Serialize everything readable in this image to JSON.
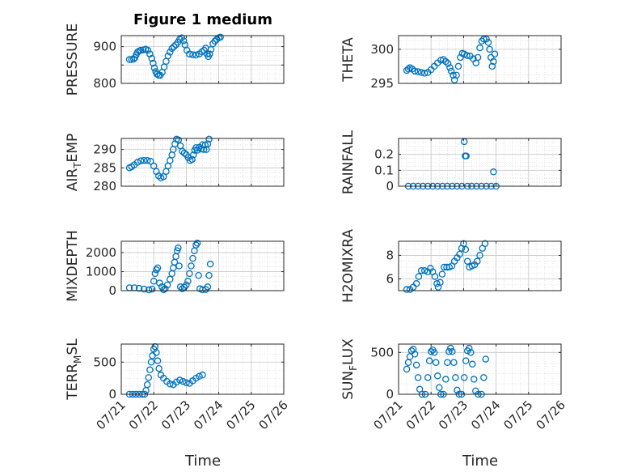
{
  "figure": {
    "title": "Figure 1 medium",
    "marker_color": "#0072BD",
    "x_label": "Time",
    "x_ticks": [
      "07/21",
      "07/22",
      "07/23",
      "07/24",
      "07/25",
      "07/26"
    ],
    "x_range_days": [
      0,
      5
    ]
  },
  "chart_data": [
    {
      "type": "scatter",
      "ylabel": "PRESSURE",
      "ylim": [
        800,
        930
      ],
      "yticks": [
        800,
        850,
        900
      ],
      "ytick_labels": [
        "800",
        "",
        "900"
      ],
      "points": [
        [
          0.25,
          865
        ],
        [
          0.32,
          865
        ],
        [
          0.38,
          866
        ],
        [
          0.42,
          870
        ],
        [
          0.46,
          878
        ],
        [
          0.5,
          885
        ],
        [
          0.55,
          888
        ],
        [
          0.6,
          890
        ],
        [
          0.68,
          891
        ],
        [
          0.75,
          893
        ],
        [
          0.82,
          890
        ],
        [
          0.88,
          880
        ],
        [
          0.94,
          868
        ],
        [
          0.98,
          855
        ],
        [
          1.02,
          842
        ],
        [
          1.06,
          832
        ],
        [
          1.1,
          825
        ],
        [
          1.15,
          822
        ],
        [
          1.2,
          822
        ],
        [
          1.26,
          830
        ],
        [
          1.32,
          845
        ],
        [
          1.38,
          860
        ],
        [
          1.44,
          875
        ],
        [
          1.5,
          885
        ],
        [
          1.56,
          895
        ],
        [
          1.62,
          900
        ],
        [
          1.68,
          905
        ],
        [
          1.74,
          912
        ],
        [
          1.8,
          920
        ],
        [
          1.86,
          924
        ],
        [
          1.92,
          916
        ],
        [
          1.96,
          905
        ],
        [
          2.02,
          890
        ],
        [
          2.1,
          880
        ],
        [
          2.2,
          878
        ],
        [
          2.3,
          877
        ],
        [
          2.4,
          880
        ],
        [
          2.48,
          886
        ],
        [
          2.55,
          890
        ],
        [
          2.6,
          896
        ],
        [
          2.64,
          880
        ],
        [
          2.68,
          873
        ],
        [
          2.72,
          880
        ],
        [
          2.76,
          892
        ],
        [
          2.82,
          908
        ],
        [
          2.88,
          915
        ],
        [
          2.94,
          920
        ],
        [
          3.0,
          924
        ],
        [
          3.05,
          926
        ]
      ]
    },
    {
      "type": "scatter",
      "ylabel": "THETA",
      "ylim": [
        295,
        302
      ],
      "yticks": [
        295,
        300
      ],
      "ytick_labels": [
        "295",
        "300"
      ],
      "points": [
        [
          0.25,
          296.9
        ],
        [
          0.3,
          297.1
        ],
        [
          0.35,
          297.3
        ],
        [
          0.42,
          297.1
        ],
        [
          0.5,
          296.8
        ],
        [
          0.6,
          296.7
        ],
        [
          0.7,
          296.6
        ],
        [
          0.8,
          296.5
        ],
        [
          0.9,
          296.6
        ],
        [
          1.0,
          297.0
        ],
        [
          1.1,
          297.5
        ],
        [
          1.2,
          298.0
        ],
        [
          1.3,
          298.4
        ],
        [
          1.38,
          298.5
        ],
        [
          1.45,
          298.2
        ],
        [
          1.52,
          297.9
        ],
        [
          1.58,
          297.3
        ],
        [
          1.62,
          296.8
        ],
        [
          1.68,
          296.2
        ],
        [
          1.72,
          295.5
        ],
        [
          1.78,
          296.2
        ],
        [
          1.84,
          297.5
        ],
        [
          1.9,
          298.8
        ],
        [
          1.96,
          299.4
        ],
        [
          2.02,
          299.3
        ],
        [
          2.1,
          299.1
        ],
        [
          2.2,
          299.0
        ],
        [
          2.3,
          298.6
        ],
        [
          2.38,
          298.0
        ],
        [
          2.44,
          298.8
        ],
        [
          2.5,
          300.2
        ],
        [
          2.56,
          301.2
        ],
        [
          2.62,
          301.5
        ],
        [
          2.7,
          301.5
        ],
        [
          2.76,
          301.0
        ],
        [
          2.8,
          300.0
        ],
        [
          2.84,
          298.8
        ],
        [
          2.88,
          297.5
        ],
        [
          2.92,
          298.2
        ],
        [
          2.96,
          299.3
        ]
      ]
    },
    {
      "type": "scatter",
      "ylabel": "AIR_TEMP",
      "ylim": [
        280,
        293
      ],
      "yticks": [
        280,
        285,
        290
      ],
      "ytick_labels": [
        "280",
        "285",
        "290"
      ],
      "points": [
        [
          0.25,
          285
        ],
        [
          0.32,
          285.3
        ],
        [
          0.4,
          285.8
        ],
        [
          0.5,
          286.5
        ],
        [
          0.6,
          286.9
        ],
        [
          0.7,
          287
        ],
        [
          0.8,
          287
        ],
        [
          0.9,
          286.8
        ],
        [
          1.0,
          285.5
        ],
        [
          1.08,
          284
        ],
        [
          1.15,
          282.8
        ],
        [
          1.22,
          282.3
        ],
        [
          1.3,
          282.6
        ],
        [
          1.38,
          284
        ],
        [
          1.44,
          285.5
        ],
        [
          1.5,
          287
        ],
        [
          1.56,
          288.5
        ],
        [
          1.6,
          290
        ],
        [
          1.65,
          291.5
        ],
        [
          1.7,
          292.8
        ],
        [
          1.76,
          292.6
        ],
        [
          1.82,
          291
        ],
        [
          1.88,
          289.5
        ],
        [
          1.94,
          289
        ],
        [
          2.0,
          288.6
        ],
        [
          2.06,
          287.8
        ],
        [
          2.12,
          287
        ],
        [
          2.18,
          287.3
        ],
        [
          2.22,
          288.5
        ],
        [
          2.26,
          289.8
        ],
        [
          2.3,
          290.5
        ],
        [
          2.34,
          289.8
        ],
        [
          2.4,
          290.6
        ],
        [
          2.46,
          290.1
        ],
        [
          2.5,
          291.3
        ],
        [
          2.54,
          290.0
        ],
        [
          2.58,
          291.2
        ],
        [
          2.62,
          290.0
        ],
        [
          2.66,
          291.5
        ],
        [
          2.7,
          292.8
        ]
      ]
    },
    {
      "type": "scatter",
      "ylabel": "RAINFALL",
      "ylim": [
        0,
        0.3
      ],
      "yticks": [
        0,
        0.1,
        0.2
      ],
      "ytick_labels": [
        "0",
        "0.1",
        "0.2"
      ],
      "points": [
        [
          0.3,
          0
        ],
        [
          0.45,
          0
        ],
        [
          0.6,
          0
        ],
        [
          0.75,
          0
        ],
        [
          0.9,
          0
        ],
        [
          1.05,
          0
        ],
        [
          1.2,
          0
        ],
        [
          1.35,
          0
        ],
        [
          1.5,
          0
        ],
        [
          1.65,
          0
        ],
        [
          1.8,
          0
        ],
        [
          1.95,
          0
        ],
        [
          2.02,
          0.28
        ],
        [
          2.05,
          0.19
        ],
        [
          2.08,
          0.19
        ],
        [
          2.12,
          0
        ],
        [
          2.25,
          0
        ],
        [
          2.4,
          0
        ],
        [
          2.55,
          0
        ],
        [
          2.7,
          0
        ],
        [
          2.85,
          0
        ],
        [
          3.0,
          0
        ],
        [
          2.92,
          0.09
        ]
      ]
    },
    {
      "type": "scatter",
      "ylabel": "MIXDEPTH",
      "ylim": [
        0,
        2600
      ],
      "yticks": [
        0,
        1000,
        2000
      ],
      "ytick_labels": [
        "0",
        "1000",
        "2000"
      ],
      "points": [
        [
          0.25,
          150
        ],
        [
          0.4,
          150
        ],
        [
          0.55,
          120
        ],
        [
          0.7,
          80
        ],
        [
          0.85,
          40
        ],
        [
          0.95,
          80
        ],
        [
          1.0,
          500
        ],
        [
          1.04,
          900
        ],
        [
          1.08,
          1100
        ],
        [
          1.12,
          1200
        ],
        [
          1.18,
          400
        ],
        [
          1.25,
          200
        ],
        [
          1.3,
          50
        ],
        [
          1.35,
          100
        ],
        [
          1.42,
          300
        ],
        [
          1.5,
          600
        ],
        [
          1.56,
          900
        ],
        [
          1.6,
          1200
        ],
        [
          1.64,
          1500
        ],
        [
          1.68,
          1800
        ],
        [
          1.72,
          2100
        ],
        [
          1.75,
          2250
        ],
        [
          1.78,
          1300
        ],
        [
          1.82,
          200
        ],
        [
          1.88,
          100
        ],
        [
          1.94,
          180
        ],
        [
          2.0,
          300
        ],
        [
          2.05,
          500
        ],
        [
          2.1,
          900
        ],
        [
          2.15,
          1300
        ],
        [
          2.2,
          1700
        ],
        [
          2.25,
          2100
        ],
        [
          2.3,
          2400
        ],
        [
          2.34,
          2500
        ],
        [
          2.38,
          800
        ],
        [
          2.42,
          100
        ],
        [
          2.5,
          50
        ],
        [
          2.6,
          60
        ],
        [
          2.66,
          200
        ],
        [
          2.7,
          800
        ],
        [
          2.74,
          1400
        ]
      ]
    },
    {
      "type": "scatter",
      "ylabel": "H2OMIXRA",
      "ylim": [
        5,
        9.2
      ],
      "yticks": [
        6,
        8
      ],
      "ytick_labels": [
        "6",
        "8"
      ],
      "points": [
        [
          0.25,
          5.1
        ],
        [
          0.35,
          5.1
        ],
        [
          0.45,
          5.3
        ],
        [
          0.55,
          5.6
        ],
        [
          0.62,
          6.2
        ],
        [
          0.7,
          6.7
        ],
        [
          0.8,
          6.7
        ],
        [
          0.9,
          6.6
        ],
        [
          0.98,
          6.9
        ],
        [
          1.05,
          6.6
        ],
        [
          1.12,
          6.2
        ],
        [
          1.18,
          5.6
        ],
        [
          1.22,
          5.3
        ],
        [
          1.28,
          5.7
        ],
        [
          1.34,
          6.4
        ],
        [
          1.4,
          7.0
        ],
        [
          1.48,
          7.0
        ],
        [
          1.56,
          7.0
        ],
        [
          1.64,
          7.1
        ],
        [
          1.72,
          7.5
        ],
        [
          1.8,
          7.8
        ],
        [
          1.88,
          8.1
        ],
        [
          1.94,
          8.6
        ],
        [
          2.0,
          9.0
        ],
        [
          2.06,
          8.5
        ],
        [
          2.12,
          7.5
        ],
        [
          2.18,
          7.0
        ],
        [
          2.26,
          7.1
        ],
        [
          2.34,
          7.2
        ],
        [
          2.42,
          7.5
        ],
        [
          2.5,
          8.0
        ],
        [
          2.58,
          8.6
        ],
        [
          2.66,
          9.0
        ]
      ]
    },
    {
      "type": "scatter",
      "ylabel": "TERR_MSL",
      "ylim": [
        0,
        780
      ],
      "yticks": [
        0,
        500
      ],
      "ytick_labels": [
        "0",
        "500"
      ],
      "points": [
        [
          0.25,
          0
        ],
        [
          0.35,
          0
        ],
        [
          0.45,
          0
        ],
        [
          0.55,
          0
        ],
        [
          0.65,
          0
        ],
        [
          0.72,
          0
        ],
        [
          0.76,
          60
        ],
        [
          0.8,
          150
        ],
        [
          0.84,
          260
        ],
        [
          0.88,
          380
        ],
        [
          0.92,
          500
        ],
        [
          0.96,
          600
        ],
        [
          1.0,
          700
        ],
        [
          1.04,
          740
        ],
        [
          1.08,
          650
        ],
        [
          1.12,
          520
        ],
        [
          1.16,
          400
        ],
        [
          1.22,
          300
        ],
        [
          1.3,
          250
        ],
        [
          1.4,
          200
        ],
        [
          1.5,
          160
        ],
        [
          1.6,
          150
        ],
        [
          1.7,
          190
        ],
        [
          1.8,
          220
        ],
        [
          1.9,
          200
        ],
        [
          2.0,
          180
        ],
        [
          2.1,
          170
        ],
        [
          2.2,
          210
        ],
        [
          2.3,
          250
        ],
        [
          2.4,
          280
        ],
        [
          2.5,
          300
        ]
      ]
    },
    {
      "type": "scatter",
      "ylabel": "SUN_FLUX",
      "ylim": [
        0,
        600
      ],
      "yticks": [
        0,
        500
      ],
      "ytick_labels": [
        "0",
        "500"
      ],
      "points": [
        [
          0.25,
          300
        ],
        [
          0.3,
          380
        ],
        [
          0.35,
          450
        ],
        [
          0.4,
          520
        ],
        [
          0.45,
          540
        ],
        [
          0.5,
          480
        ],
        [
          0.55,
          350
        ],
        [
          0.6,
          200
        ],
        [
          0.65,
          60
        ],
        [
          0.72,
          0
        ],
        [
          0.82,
          0
        ],
        [
          0.9,
          200
        ],
        [
          0.95,
          400
        ],
        [
          1.0,
          510
        ],
        [
          1.05,
          530
        ],
        [
          1.1,
          500
        ],
        [
          1.15,
          380
        ],
        [
          1.2,
          220
        ],
        [
          1.25,
          80
        ],
        [
          1.3,
          0
        ],
        [
          1.38,
          0
        ],
        [
          1.45,
          180
        ],
        [
          1.5,
          380
        ],
        [
          1.55,
          510
        ],
        [
          1.6,
          550
        ],
        [
          1.65,
          510
        ],
        [
          1.7,
          380
        ],
        [
          1.75,
          200
        ],
        [
          1.8,
          50
        ],
        [
          1.86,
          0
        ],
        [
          1.94,
          0
        ],
        [
          2.02,
          200
        ],
        [
          2.07,
          400
        ],
        [
          2.12,
          520
        ],
        [
          2.17,
          550
        ],
        [
          2.22,
          500
        ],
        [
          2.27,
          360
        ],
        [
          2.32,
          180
        ],
        [
          2.37,
          40
        ],
        [
          2.45,
          0
        ],
        [
          2.55,
          0
        ],
        [
          2.62,
          200
        ],
        [
          2.68,
          420
        ]
      ]
    }
  ]
}
